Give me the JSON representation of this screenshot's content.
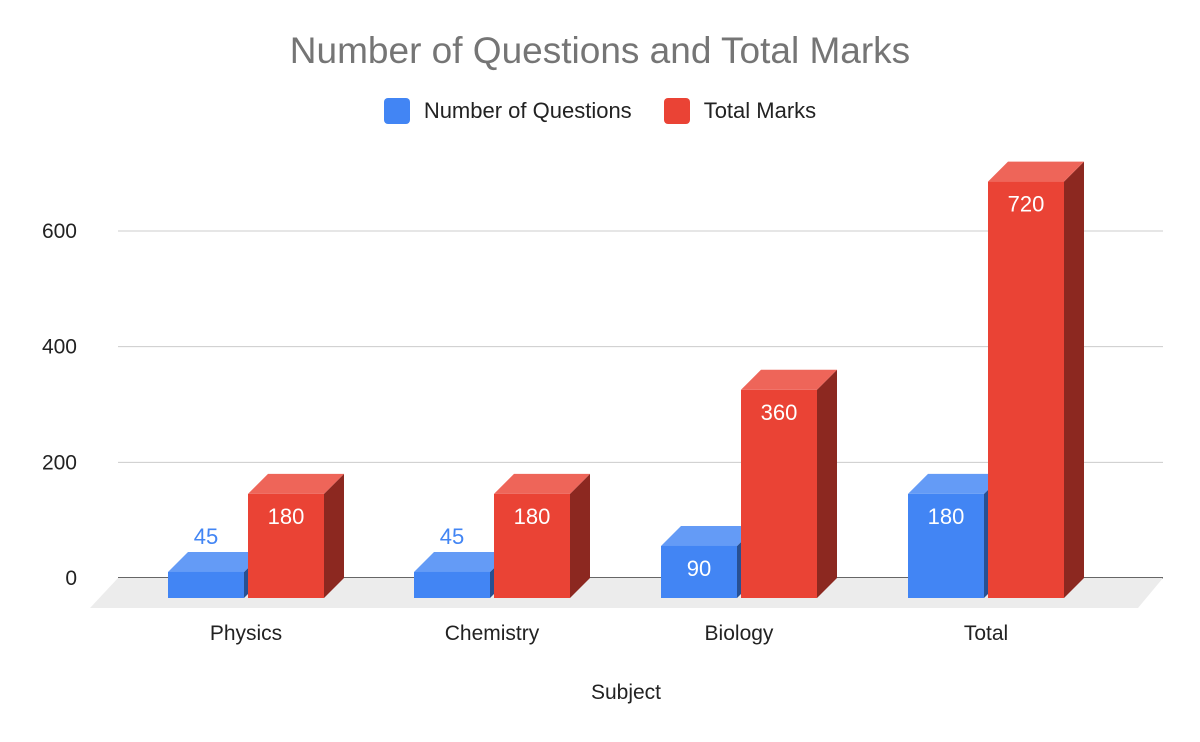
{
  "chart_data": {
    "type": "bar",
    "title": "Number of Questions and Total Marks",
    "xlabel": "Subject",
    "ylabel": "",
    "categories": [
      "Physics",
      "Chemistry",
      "Biology",
      "Total"
    ],
    "series": [
      {
        "name": "Number of Questions",
        "values": [
          45,
          45,
          90,
          180
        ],
        "color": "#4285f4"
      },
      {
        "name": "Total Marks",
        "values": [
          180,
          180,
          360,
          720
        ],
        "color": "#ea4335"
      }
    ],
    "yticks": [
      0,
      200,
      400,
      600
    ],
    "ylim": [
      0,
      720
    ],
    "grid": true,
    "legend_position": "top",
    "style": "3d"
  }
}
